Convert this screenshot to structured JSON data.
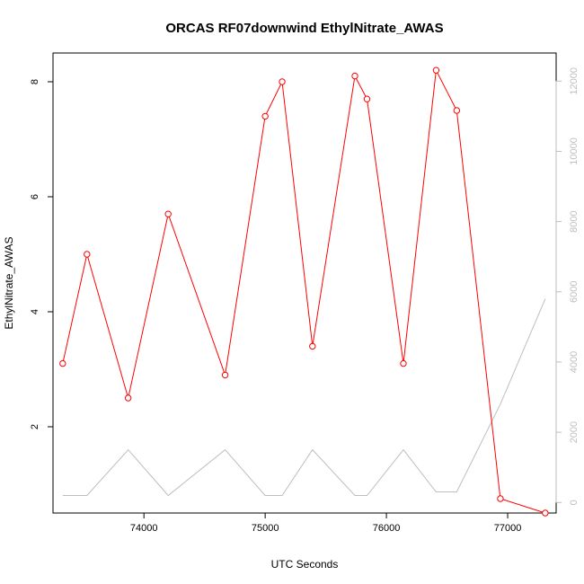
{
  "chart_data": {
    "type": "line",
    "title": "ORCAS RF07downwind EthylNitrate_AWAS",
    "xlabel": "UTC Seconds",
    "ylabel": "EthylNitrate_AWAS",
    "y2label": "",
    "xlim": [
      73250,
      77400
    ],
    "ylim": [
      0.5,
      8.5
    ],
    "y2lim": [
      -300,
      12800
    ],
    "x_ticks": [
      74000,
      75000,
      76000,
      77000
    ],
    "y_ticks": [
      2,
      4,
      6,
      8
    ],
    "y2_ticks": [
      0,
      2000,
      4000,
      6000,
      8000,
      10000,
      12000
    ],
    "grid": false,
    "legend": "none",
    "series": [
      {
        "axis": "left",
        "color": "#ff0000",
        "marker": "circle",
        "x": [
          73330,
          73530,
          73870,
          74200,
          74670,
          75000,
          75140,
          75390,
          75740,
          75840,
          76140,
          76410,
          76580,
          76940,
          77310
        ],
        "y": [
          3.1,
          5.0,
          2.5,
          5.7,
          2.9,
          7.4,
          8.0,
          3.4,
          8.1,
          7.7,
          3.1,
          8.2,
          7.5,
          0.75,
          0.5
        ]
      },
      {
        "axis": "right",
        "color": "#bebebe",
        "marker": "none",
        "x": [
          73330,
          73530,
          73870,
          74200,
          74670,
          75000,
          75140,
          75390,
          75740,
          75840,
          76140,
          76410,
          76580,
          76940,
          77310
        ],
        "y": [
          200,
          200,
          1500,
          200,
          1500,
          200,
          200,
          1500,
          200,
          200,
          1500,
          300,
          300,
          2800,
          5800
        ]
      }
    ]
  }
}
